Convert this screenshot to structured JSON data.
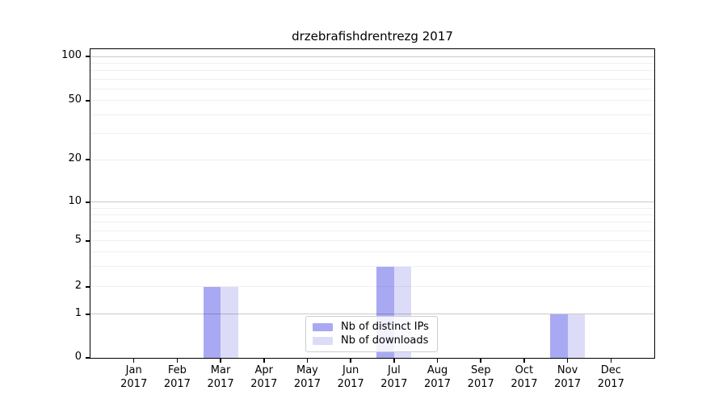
{
  "page": {
    "background": "#ffffff"
  },
  "chart_data": {
    "type": "bar",
    "title": "drzebrafishdrentrezg 2017",
    "months": [
      "Jan",
      "Feb",
      "Mar",
      "Apr",
      "May",
      "Jun",
      "Jul",
      "Aug",
      "Sep",
      "Oct",
      "Nov",
      "Dec"
    ],
    "year": "2017",
    "series": [
      {
        "name": "Nb of distinct IPs",
        "color": "#a9a9f3",
        "values": [
          0,
          0,
          2,
          0,
          0,
          0,
          3,
          0,
          0,
          0,
          1,
          0
        ]
      },
      {
        "name": "Nb of downloads",
        "color": "#dcdcf9",
        "values": [
          0,
          0,
          2,
          0,
          0,
          0,
          3,
          0,
          0,
          0,
          1,
          0
        ]
      }
    ],
    "y_ticks": [
      0,
      1,
      2,
      5,
      10,
      20,
      50,
      100
    ],
    "y_scale": "symlog",
    "ylim": [
      0,
      110
    ],
    "grid": "horizontal",
    "legend_position": "lower center",
    "axis_color": "#000000",
    "major_grid_color": "#c9c9c9",
    "minor_grid_color": "#efefef"
  }
}
